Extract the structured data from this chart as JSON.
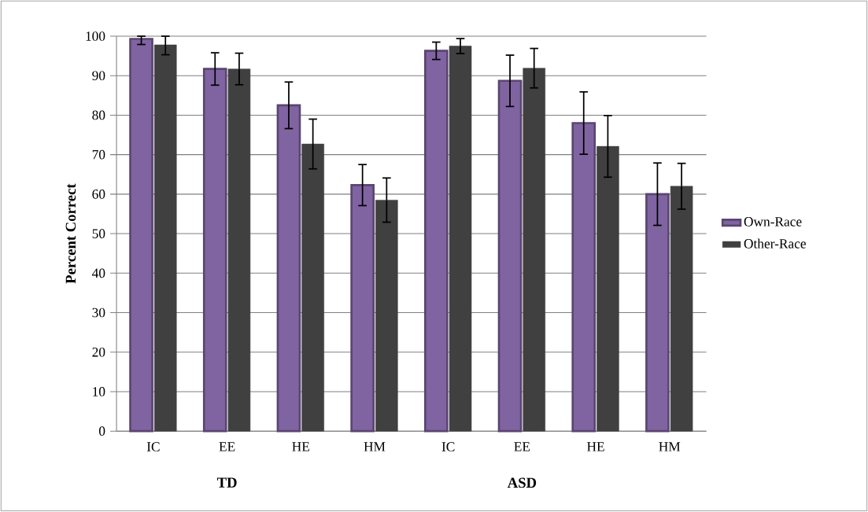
{
  "chart_data": {
    "type": "bar",
    "ylabel": "Percent Correct",
    "categories": [
      "IC",
      "EE",
      "HE",
      "HM",
      "IC",
      "EE",
      "HE",
      "HM"
    ],
    "series": [
      {
        "name": "Own-Race",
        "color": "#8064a2",
        "values": [
          99.3,
          91.7,
          82.5,
          62.3,
          96.3,
          88.7,
          78,
          60
        ],
        "errors": [
          [
            97.9,
            100
          ],
          4.1,
          5.9,
          5.2,
          2.2,
          6.5,
          7.9,
          7.9
        ]
      },
      {
        "name": "Other-Race",
        "color": "#404040",
        "values": [
          97.8,
          91.7,
          72.7,
          58.5,
          97.5,
          91.9,
          72.1,
          62
        ],
        "errors": [
          [
            95.3,
            100
          ],
          4,
          6.3,
          5.6,
          1.9,
          5,
          7.8,
          5.8
        ]
      }
    ],
    "annotations": [
      "TD",
      "ASD"
    ],
    "ylim": [
      0,
      100
    ],
    "yticks": [
      0,
      10,
      20,
      30,
      40,
      50,
      60,
      70,
      80,
      90,
      100
    ],
    "grid": "y",
    "legend": "right"
  }
}
